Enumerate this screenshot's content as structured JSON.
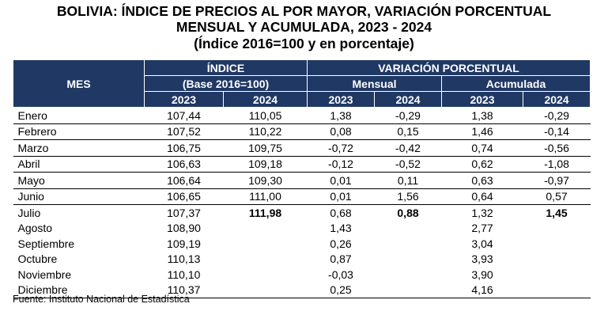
{
  "title": [
    "BOLIVIA: ÍNDICE DE PRECIOS AL POR MAYOR, VARIACIÓN PORCENTUAL",
    "MENSUAL Y ACUMULADA, 2023 - 2024",
    "(Índice 2016=100 y en porcentaje)"
  ],
  "header": {
    "mes": "MES",
    "indice": "ÍNDICE",
    "base": "(Base 2016=100)",
    "variacion": "VARIACIÓN PORCENTUAL",
    "mensual": "Mensual",
    "acumulada": "Acumulada",
    "years": [
      "2023",
      "2024",
      "2023",
      "2024",
      "2023",
      "2024"
    ]
  },
  "rows": [
    [
      "Enero",
      "107,44",
      "110,05",
      "1,38",
      "-0,29",
      "1,38",
      "-0,29"
    ],
    [
      "Febrero",
      "107,52",
      "110,22",
      "0,08",
      "0,15",
      "1,46",
      "-0,14"
    ],
    [
      "Marzo",
      "106,75",
      "109,75",
      "-0,72",
      "-0,42",
      "0,74",
      "-0,56"
    ],
    [
      "Abril",
      "106,63",
      "109,18",
      "-0,12",
      "-0,52",
      "0,62",
      "-1,08"
    ],
    [
      "Mayo",
      "106,64",
      "109,30",
      "0,01",
      "0,11",
      "0,63",
      "-0,97"
    ],
    [
      "Junio",
      "106,65",
      "111,00",
      "0,01",
      "1,56",
      "0,64",
      "0,57"
    ],
    [
      "Julio",
      "107,37",
      "111,98",
      "0,68",
      "0,88",
      "1,32",
      "1,45"
    ],
    [
      "Agosto",
      "108,90",
      "",
      "1,43",
      "",
      "2,77",
      ""
    ],
    [
      "Septiembre",
      "109,19",
      "",
      "0,26",
      "",
      "3,04",
      ""
    ],
    [
      "Octubre",
      "110,13",
      "",
      "0,87",
      "",
      "3,93",
      ""
    ],
    [
      "Noviembre",
      "110,10",
      "",
      "-0,03",
      "",
      "3,90",
      ""
    ],
    [
      "Diciembre",
      "110,37",
      "",
      "0,25",
      "",
      "4,16",
      ""
    ]
  ],
  "source": "Fuente: Instituto Nacional de Estadística",
  "colors": {
    "header_bg": "#1f3864"
  }
}
